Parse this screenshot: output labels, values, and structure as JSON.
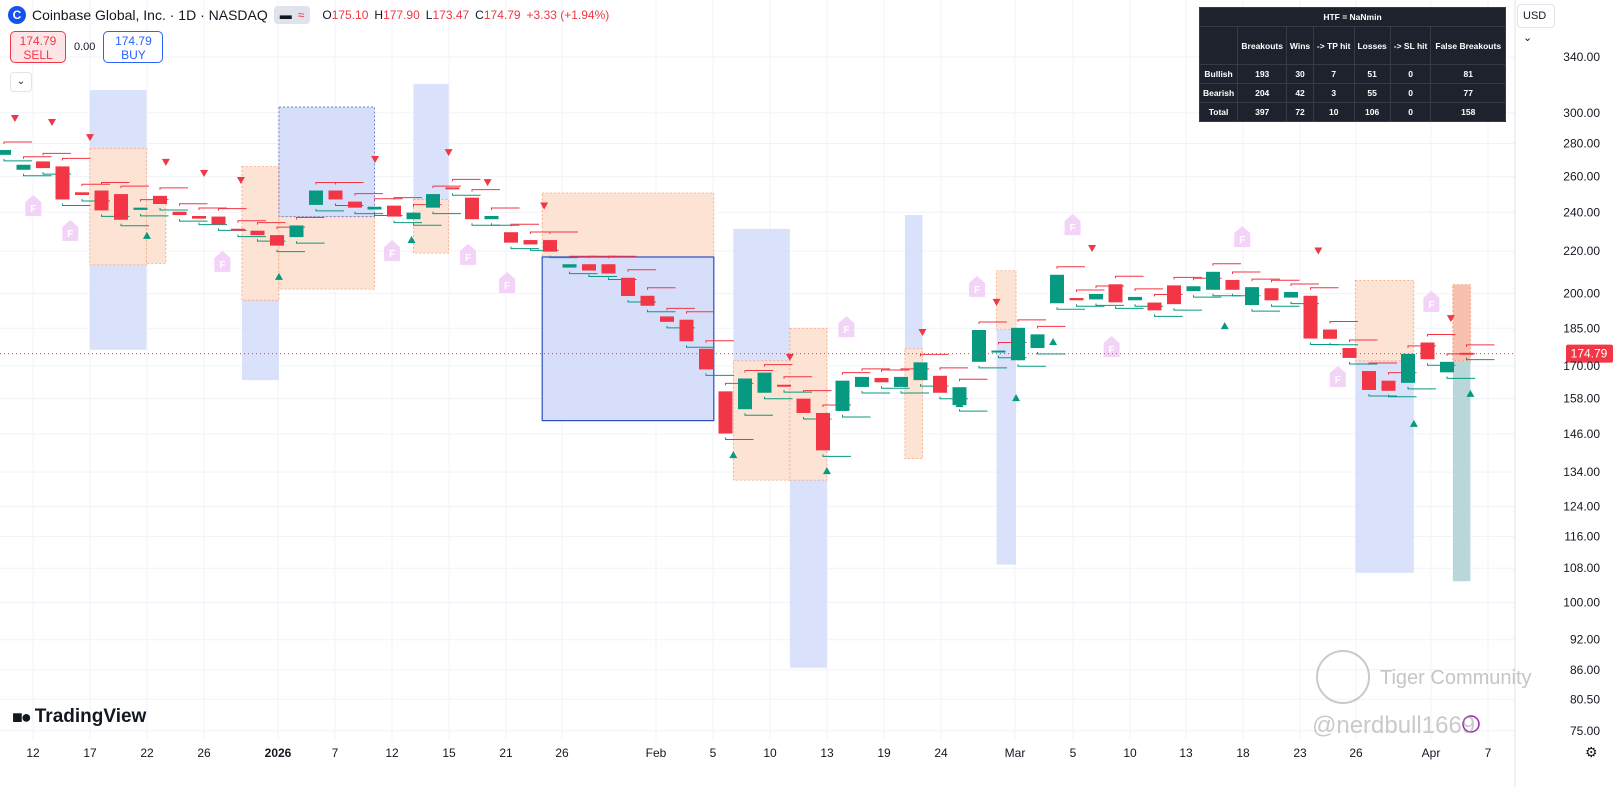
{
  "header": {
    "logo_letter": "C",
    "title": "Coinbase Global, Inc. · 1D · NASDAQ",
    "ohlc": {
      "o_label": "O",
      "o": "175.10",
      "h_label": "H",
      "h": "177.90",
      "l_label": "L",
      "l": "173.47",
      "c_label": "C",
      "c": "174.79",
      "change": "+3.33 (+1.94%)"
    }
  },
  "trade": {
    "sell_price": "174.79",
    "sell_label": "SELL",
    "spread": "0.00",
    "buy_price": "174.79",
    "buy_label": "BUY"
  },
  "currency": "USD",
  "stats_table": {
    "title": "HTF = NaNmin",
    "columns": [
      "",
      "Breakouts",
      "Wins",
      "-> TP hit",
      "Losses",
      "-> SL hit",
      "False Breakouts"
    ],
    "rows": [
      [
        "Bullish",
        "193",
        "30",
        "7",
        "51",
        "0",
        "81"
      ],
      [
        "Bearish",
        "204",
        "42",
        "3",
        "55",
        "0",
        "77"
      ],
      [
        "Total",
        "397",
        "72",
        "10",
        "106",
        "0",
        "158"
      ]
    ]
  },
  "branding": {
    "tradingview": "TradingView",
    "watermark_1": "Tiger Community",
    "watermark_2": "@nerdbull1669"
  },
  "colors": {
    "up": "#089981",
    "down": "#f23645",
    "bull_zone": "#d6defa",
    "bear_zone": "#fde3d3",
    "false_marker": "#f3d3f7",
    "price_line": "#f23645"
  },
  "chart_data": {
    "type": "candlestick",
    "y_scale": "log",
    "ylim": [
      75,
      340
    ],
    "last_price": 174.79,
    "y_ticks": [
      "340.00",
      "300.00",
      "280.00",
      "260.00",
      "240.00",
      "220.00",
      "200.00",
      "185.00",
      "170.00",
      "158.00",
      "146.00",
      "134.00",
      "124.00",
      "116.00",
      "108.00",
      "100.00",
      "92.00",
      "86.00",
      "80.50",
      "75.00"
    ],
    "x_ticks": [
      "12",
      "17",
      "22",
      "26",
      "2026",
      "7",
      "12",
      "15",
      "21",
      "26",
      "Feb",
      "5",
      "10",
      "13",
      "19",
      "24",
      "Mar",
      "5",
      "10",
      "13",
      "18",
      "23",
      "26",
      "Apr",
      "7"
    ],
    "candles": [
      [
        273,
        276
      ],
      [
        264,
        267
      ],
      [
        269,
        265
      ],
      [
        266,
        247
      ],
      [
        251,
        249.5
      ],
      [
        252,
        241
      ],
      [
        250,
        236
      ],
      [
        241.3,
        242.5
      ],
      [
        249,
        244.5
      ],
      [
        240.3,
        238.5
      ],
      [
        238,
        236.6
      ],
      [
        237.7,
        233.6
      ],
      [
        231.3,
        230.3
      ],
      [
        230.3,
        228
      ],
      [
        228,
        222.7
      ],
      [
        227,
        233
      ],
      [
        244,
        252
      ],
      [
        252,
        247
      ],
      [
        245.8,
        242.5
      ],
      [
        241.5,
        243
      ],
      [
        243.6,
        237.7
      ],
      [
        236.3,
        239.8
      ],
      [
        242.5,
        250
      ],
      [
        253.8,
        252.7
      ],
      [
        248,
        236.3
      ],
      [
        236.3,
        238
      ],
      [
        229.5,
        224.2
      ],
      [
        225.5,
        223.3
      ],
      [
        225.5,
        219.7
      ],
      [
        212,
        213.6
      ],
      [
        213.6,
        210.6
      ],
      [
        213.6,
        209.2
      ],
      [
        207.2,
        198.9
      ],
      [
        199,
        194.6
      ],
      [
        190,
        187.7
      ],
      [
        188.6,
        179.7
      ],
      [
        176.7,
        168.7
      ],
      [
        160.6,
        146.1
      ],
      [
        154.3,
        165.3
      ],
      [
        160.1,
        167.5
      ],
      [
        163,
        162.5
      ],
      [
        158,
        153
      ],
      [
        153,
        140.7
      ],
      [
        153.7,
        164.5
      ],
      [
        162.2,
        165.9
      ],
      [
        165.5,
        163.9
      ],
      [
        162.2,
        165.9
      ],
      [
        164.7,
        171.4
      ],
      [
        166.3,
        160.1
      ],
      [
        155.7,
        162.1
      ],
      [
        171.6,
        184.3
      ],
      [
        175.5,
        176
      ],
      [
        172.2,
        185.2
      ],
      [
        177,
        182.5
      ],
      [
        195.7,
        208.6
      ],
      [
        198,
        197
      ],
      [
        197.4,
        199.8
      ],
      [
        204.2,
        196.1
      ],
      [
        197,
        198.5
      ],
      [
        196,
        192.6
      ],
      [
        203.7,
        195.3
      ],
      [
        201.1,
        203.3
      ],
      [
        201.7,
        210
      ],
      [
        206.2,
        201.7
      ],
      [
        194.9,
        202.9
      ],
      [
        202.4,
        197
      ],
      [
        198.2,
        200.7
      ],
      [
        199,
        180.8
      ],
      [
        184.5,
        180.7
      ],
      [
        177,
        173.1
      ],
      [
        168.1,
        161.1
      ],
      [
        164.5,
        160.8
      ],
      [
        163.7,
        174.7
      ],
      [
        179.2,
        172.6
      ],
      [
        167.6,
        171.6
      ],
      [
        175.1,
        174.79
      ]
    ],
    "zones": [
      {
        "kind": "bull",
        "bars": [
          4.4,
          7.3
        ],
        "price": [
          315.7,
          176.3
        ]
      },
      {
        "kind": "bear",
        "bars": [
          4.4,
          7.3
        ],
        "price": [
          277,
          213.3
        ]
      },
      {
        "kind": "bear",
        "bars": [
          7.3,
          8.3
        ],
        "price": [
          247,
          214
        ]
      },
      {
        "kind": "bull",
        "bars": [
          12.2,
          14.1
        ],
        "price": [
          228,
          164.7
        ]
      },
      {
        "kind": "bear",
        "bars": [
          12.2,
          14.1
        ],
        "price": [
          265.9,
          197
        ]
      },
      {
        "kind": "bear",
        "bars": [
          14.1,
          19
        ],
        "price": [
          237.7,
          202
        ]
      },
      {
        "kind": "bull_outline_dashed",
        "bars": [
          14.1,
          19
        ],
        "price": [
          303.9,
          237.7
        ]
      },
      {
        "kind": "bull",
        "bars": [
          21,
          22.8
        ],
        "price": [
          320,
          243.7
        ]
      },
      {
        "kind": "bear",
        "bars": [
          21,
          22.8
        ],
        "price": [
          247,
          219
        ]
      },
      {
        "kind": "bear",
        "bars": [
          27.6,
          36.4
        ],
        "price": [
          250.6,
          217.1
        ]
      },
      {
        "kind": "bull_outline",
        "bars": [
          27.6,
          36.4
        ],
        "price": [
          217.1,
          150.4
        ]
      },
      {
        "kind": "bull",
        "bars": [
          37.4,
          40.3
        ],
        "price": [
          231.2,
          146.6
        ]
      },
      {
        "kind": "bear",
        "bars": [
          37.4,
          40.3
        ],
        "price": [
          172,
          131.6
        ]
      },
      {
        "kind": "bull",
        "bars": [
          40.3,
          42.2
        ],
        "price": [
          146.6,
          86.4
        ]
      },
      {
        "kind": "bear",
        "bars": [
          40.3,
          42.2
        ],
        "price": [
          185,
          131.6
        ]
      },
      {
        "kind": "bull",
        "bars": [
          46.2,
          47.1
        ],
        "price": [
          238.5,
          138.1
        ]
      },
      {
        "kind": "bear",
        "bars": [
          46.2,
          47.1
        ],
        "price": [
          176.7,
          138.1
        ]
      },
      {
        "kind": "bull",
        "bars": [
          50.9,
          51.9
        ],
        "price": [
          184.6,
          108.9
        ]
      },
      {
        "kind": "bear",
        "bars": [
          50.9,
          51.9
        ],
        "price": [
          210.5,
          184.6
        ]
      },
      {
        "kind": "bull",
        "bars": [
          69.3,
          72.3
        ],
        "price": [
          172,
          106.9
        ]
      },
      {
        "kind": "bear",
        "bars": [
          69.3,
          72.3
        ],
        "price": [
          206,
          172
        ]
      },
      {
        "kind": "bull_active",
        "bars": [
          74.3,
          75.2
        ],
        "price": [
          172,
          104.9
        ]
      },
      {
        "kind": "bear_active",
        "bars": [
          74.3,
          75.2
        ],
        "price": [
          204,
          172
        ]
      }
    ],
    "bearish_signals": [
      [
        0.56,
        296.5
      ],
      [
        2.46,
        293.9
      ],
      [
        4.41,
        284.1
      ],
      [
        8.3,
        268.7
      ],
      [
        10.26,
        262.1
      ],
      [
        12.15,
        258
      ],
      [
        19.03,
        270.5
      ],
      [
        22.8,
        274.7
      ],
      [
        24.8,
        256.8
      ],
      [
        27.7,
        243.7
      ],
      [
        40.3,
        173.5
      ],
      [
        47.1,
        183.5
      ],
      [
        50.9,
        196.3
      ],
      [
        55.8,
        221.5
      ],
      [
        67.4,
        220.3
      ],
      [
        74.2,
        189.3
      ]
    ],
    "bullish_signals": [
      [
        7.33,
        227.6
      ],
      [
        14.1,
        207.6
      ],
      [
        20.9,
        225.5
      ],
      [
        37.4,
        139.2
      ],
      [
        42.2,
        134.3
      ],
      [
        49,
        156.1
      ],
      [
        51.9,
        158.2
      ],
      [
        53.8,
        179.4
      ],
      [
        62.6,
        185.9
      ],
      [
        72.3,
        149.3
      ],
      [
        75.2,
        159.7
      ]
    ],
    "false_breakout_label": "F",
    "false_breakouts": [
      [
        1.5,
        243.4
      ],
      [
        3.4,
        230.1
      ],
      [
        11.2,
        214.7
      ],
      [
        19.9,
        220
      ],
      [
        23.8,
        218.1
      ],
      [
        25.8,
        204.8
      ],
      [
        43.2,
        185.5
      ],
      [
        49.9,
        203
      ],
      [
        54.8,
        233.2
      ],
      [
        56.8,
        177.4
      ],
      [
        63.5,
        227
      ],
      [
        68.4,
        165.8
      ],
      [
        73.2,
        196.3
      ]
    ]
  }
}
